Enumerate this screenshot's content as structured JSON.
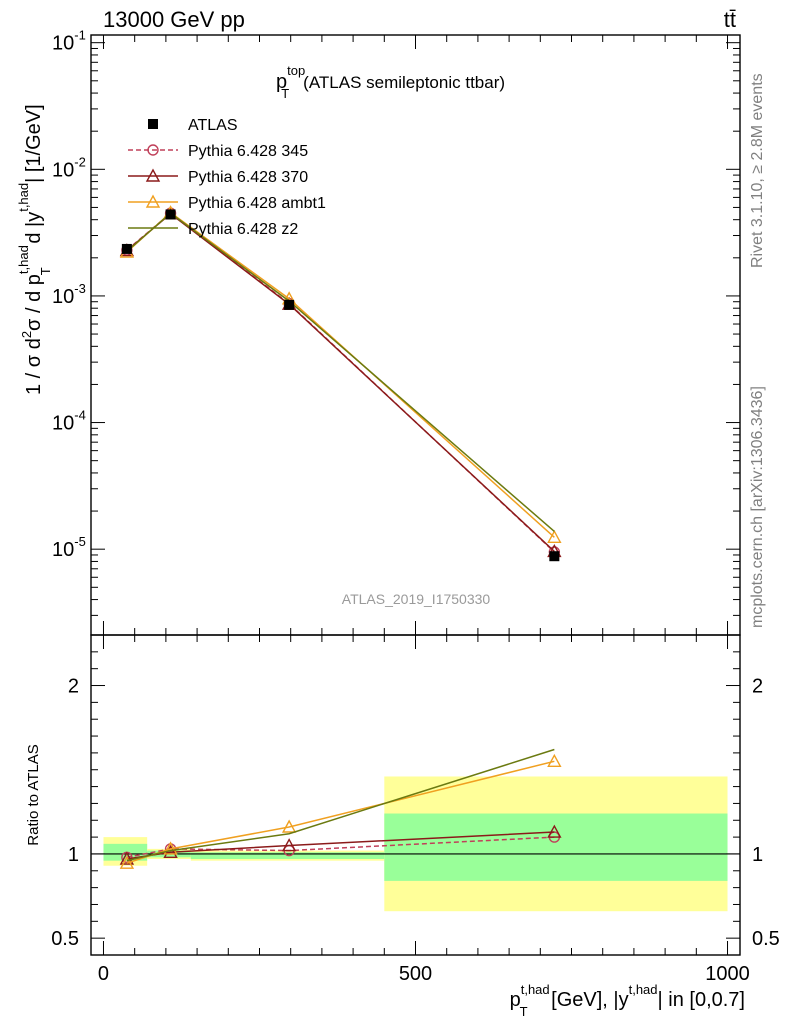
{
  "header": {
    "energy_label": "13000 GeV pp",
    "process_label": "tt̄"
  },
  "side_labels": {
    "rivet": "Rivet 3.1.10, ≥ 2.8M events",
    "mcplots": "mcplots.cern.ch [arXiv:1306.3436]"
  },
  "chart_data": [
    {
      "type": "line",
      "panel": "main",
      "title_main": "p",
      "title_sup": "top",
      "title_sub": "T",
      "title_rest": "(ATLAS semileptonic ttbar)",
      "watermark": "ATLAS_2019_I1750330",
      "ylabel": {
        "p1": "1 / σ d",
        "sup1": "2",
        "p2": "σ / d p",
        "sup2": "t,had",
        "sub2": "T",
        "p3": " d |y",
        "sup3": "t,had",
        "p4": "| [1/GeV]"
      },
      "yscale": "log",
      "ylim": [
        2.1e-06,
        0.115
      ],
      "xlim": [
        -20,
        1020
      ],
      "y_ticks": [
        {
          "value": 0.1,
          "mant": "10",
          "exp": "-1"
        },
        {
          "value": 0.01,
          "mant": "10",
          "exp": "-2"
        },
        {
          "value": 0.001,
          "mant": "10",
          "exp": "-3"
        },
        {
          "value": 0.0001,
          "mant": "10",
          "exp": "-4"
        },
        {
          "value": 1e-05,
          "mant": "10",
          "exp": "-5"
        }
      ],
      "legend_position": "top-left",
      "x": [
        37.5,
        107.5,
        297.5,
        722.5
      ],
      "series": [
        {
          "name": "ATLAS",
          "marker": "square",
          "color": "#000000",
          "dashed": false,
          "values": [
            0.00235,
            0.0044,
            0.00085,
            8.8e-06
          ]
        },
        {
          "name": "Pythia 6.428 345",
          "marker": "circle",
          "color": "#c0405a",
          "dashed": true,
          "values": [
            0.0023,
            0.0045,
            0.00087,
            9.5e-06
          ]
        },
        {
          "name": "Pythia 6.428 370",
          "marker": "triangle",
          "color": "#8b1a1a",
          "dashed": false,
          "values": [
            0.00228,
            0.00445,
            0.00086,
            9.6e-06
          ]
        },
        {
          "name": "Pythia 6.428 ambt1",
          "marker": "triangle",
          "color": "#f0a020",
          "dashed": false,
          "values": [
            0.00222,
            0.00455,
            0.00095,
            1.24e-05
          ]
        },
        {
          "name": "Pythia 6.428 z2",
          "marker": "none",
          "color": "#6b7a10",
          "dashed": false,
          "values": [
            0.00225,
            0.0045,
            0.00091,
            1.38e-05
          ]
        }
      ]
    },
    {
      "type": "line",
      "panel": "ratio",
      "ylabel": "Ratio to ATLAS",
      "ylim": [
        0.4,
        2.3
      ],
      "xlim": [
        -20,
        1020
      ],
      "y_ticks": [
        0.5,
        1,
        2
      ],
      "y_tick_labels": [
        "0.5",
        "1",
        "2"
      ],
      "x_ticks": [
        0,
        500,
        1000
      ],
      "x_tick_labels": [
        "0",
        "500",
        "1000"
      ],
      "xlabel": {
        "p1": "p",
        "sup1": "t,had",
        "sub1": "T",
        "p2": " [GeV], |y",
        "sup2": "t,had",
        "p3": "| in [0,0.7]"
      },
      "bins": [
        {
          "lo": 0,
          "hi": 70,
          "stat_lo": 0.96,
          "stat_hi": 1.06,
          "tot_lo": 0.93,
          "tot_hi": 1.1
        },
        {
          "lo": 70,
          "hi": 140,
          "stat_lo": 0.98,
          "stat_hi": 1.02,
          "tot_lo": 0.97,
          "tot_hi": 1.03
        },
        {
          "lo": 140,
          "hi": 450,
          "stat_lo": 0.97,
          "stat_hi": 1.01,
          "tot_lo": 0.96,
          "tot_hi": 1.02
        },
        {
          "lo": 450,
          "hi": 1000,
          "stat_lo": 0.84,
          "stat_hi": 1.24,
          "tot_lo": 0.66,
          "tot_hi": 1.46
        }
      ],
      "x": [
        37.5,
        107.5,
        297.5,
        722.5
      ],
      "series": [
        {
          "name": "Pythia 6.428 345",
          "values": [
            0.98,
            1.03,
            1.02,
            1.1
          ]
        },
        {
          "name": "Pythia 6.428 370",
          "values": [
            0.97,
            1.01,
            1.05,
            1.13
          ]
        },
        {
          "name": "Pythia 6.428 ambt1",
          "values": [
            0.945,
            1.03,
            1.16,
            1.55
          ]
        },
        {
          "name": "Pythia 6.428 z2",
          "values": [
            0.96,
            1.02,
            1.12,
            1.62
          ]
        }
      ]
    }
  ]
}
